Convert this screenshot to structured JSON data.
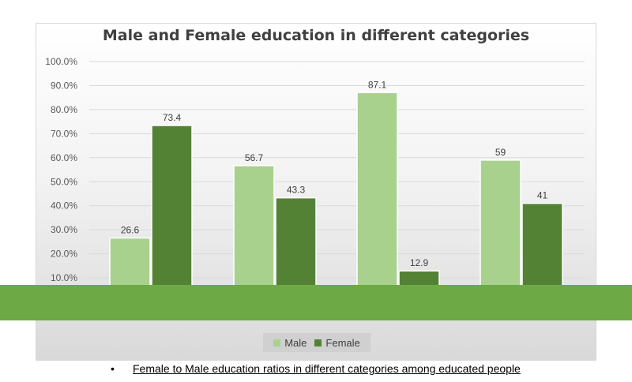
{
  "chart_data": {
    "type": "bar",
    "title": "Male and Female education in different categories",
    "categories": [
      "",
      "",
      "",
      ""
    ],
    "series": [
      {
        "name": "Male",
        "values": [
          26.6,
          56.7,
          87.1,
          59
        ],
        "labels": [
          "26.6",
          "56.7",
          "87.1",
          "59"
        ],
        "color": "#a9d18e"
      },
      {
        "name": "Female",
        "values": [
          73.4,
          43.3,
          12.9,
          41
        ],
        "labels": [
          "73.4",
          "43.3",
          "12.9",
          "41"
        ],
        "color": "#548235"
      }
    ],
    "yticks": [
      "10.0%",
      "20.0%",
      "30.0%",
      "40.0%",
      "50.0%",
      "60.0%",
      "70.0%",
      "80.0%",
      "90.0%",
      "100.0%"
    ],
    "ylim": [
      0,
      100
    ],
    "grid": true,
    "legend": "bottom"
  },
  "overlay": {
    "band_color": "#6daa45"
  },
  "caption": {
    "bullet": "•",
    "text": "Female to Male education ratios in different categories among educated people"
  }
}
